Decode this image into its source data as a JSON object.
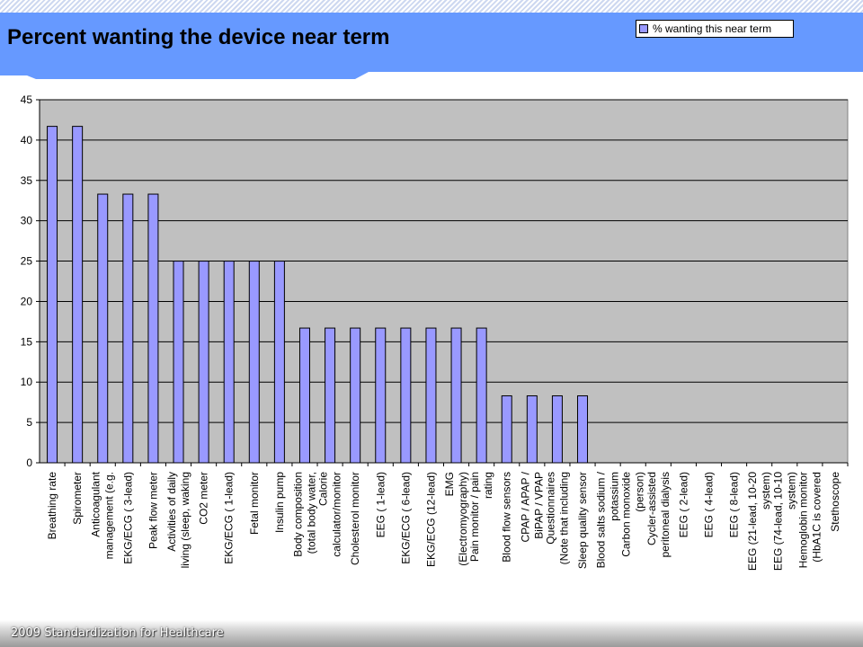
{
  "slide": {
    "title": "Percent wanting the device near term",
    "footer": "2009 Standardization for Healthcare"
  },
  "colors": {
    "banner": "#6699ff",
    "plot_area": "#c0c0c0",
    "bar_fill": "#9999ff",
    "bar_stroke": "#000000"
  },
  "chart_data": {
    "type": "bar",
    "categories": [
      [
        "Breathing rate"
      ],
      [
        "Spirometer"
      ],
      [
        "Anticoagulant",
        "management (e.g."
      ],
      [
        "EKG/ECG ( 3-lead)"
      ],
      [
        "Peak flow meter"
      ],
      [
        "Activities of daily",
        "living (sleep, waking"
      ],
      [
        "CO2 meter"
      ],
      [
        "EKG/ECG ( 1-lead)"
      ],
      [
        "Fetal monitor"
      ],
      [
        "Insulin pump"
      ],
      [
        "Body composition",
        "(total body water,"
      ],
      [
        "Calorie",
        "calculator/monitor"
      ],
      [
        "Cholesterol monitor"
      ],
      [
        "EEG ( 1-lead)"
      ],
      [
        "EKG/ECG ( 6-lead)"
      ],
      [
        "EKG/ECG (12-lead)"
      ],
      [
        "EMG",
        "(Electromyography)"
      ],
      [
        "Pain monitor / pain",
        "rating"
      ],
      [
        "Blood flow sensors"
      ],
      [
        "CPAP / APAP /",
        "BiPAP / VPAP"
      ],
      [
        "Questionnaires",
        "(Note that including"
      ],
      [
        "Sleep quality sensor"
      ],
      [
        "Blood salts sodium /",
        "potassium"
      ],
      [
        "Carbon monoxide",
        "(person)"
      ],
      [
        "Cycler-assisted",
        "peritoneal dialysis"
      ],
      [
        "EEG ( 2-lead)"
      ],
      [
        "EEG ( 4-lead)"
      ],
      [
        "EEG ( 8-lead)"
      ],
      [
        "EEG (21-lead, 10-20",
        "system)"
      ],
      [
        "EEG (74-lead, 10-10",
        "system)"
      ],
      [
        "Hemoglobin monitor",
        "(HbA1C is covered"
      ],
      [
        "Stethoscope"
      ]
    ],
    "series": [
      {
        "name": "% wanting this near term",
        "values": [
          41.7,
          41.7,
          33.3,
          33.3,
          33.3,
          25,
          25,
          25,
          25,
          25,
          16.7,
          16.7,
          16.7,
          16.7,
          16.7,
          16.7,
          16.7,
          16.7,
          8.3,
          8.3,
          8.3,
          8.3,
          0,
          0,
          0,
          0,
          0,
          0,
          0,
          0,
          0,
          0
        ]
      }
    ],
    "ylim": [
      0,
      45
    ],
    "yticks": [
      0,
      5,
      10,
      15,
      20,
      25,
      30,
      35,
      40,
      45
    ],
    "grid": true,
    "legend_position": "top-right"
  }
}
